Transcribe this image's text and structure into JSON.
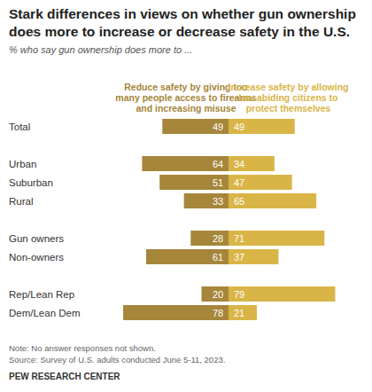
{
  "chart_data": {
    "type": "bar",
    "title": "Stark differences in views on whether gun ownership does more to increase or decrease safety in the U.S.",
    "subtitle": "% who say gun ownership does more to ...",
    "orientation": "horizontal",
    "data_labels": true,
    "tick_labels": "y",
    "xlim": [
      0,
      80
    ],
    "categories": [
      "Total",
      "Urban",
      "Suburban",
      "Rural",
      "Gun owners",
      "Non-owners",
      "Rep/Lean Rep",
      "Dem/Lean Dem"
    ],
    "series": [
      {
        "name": "Reduce safety by giving too many people access to firearms and increasing misuse",
        "color": "#a5863a",
        "values": [
          49,
          64,
          51,
          33,
          28,
          61,
          20,
          78
        ]
      },
      {
        "name": "Increase safety by allowing law-abiding citizens to protect themselves",
        "color": "#d9b548",
        "values": [
          49,
          34,
          47,
          65,
          71,
          37,
          79,
          21
        ]
      }
    ],
    "annotations": [
      "Note: No answer responses not shown.",
      "Source: Survey of U.S. adults conducted June 5-11, 2023.",
      "PEW RESEARCH CENTER"
    ]
  }
}
